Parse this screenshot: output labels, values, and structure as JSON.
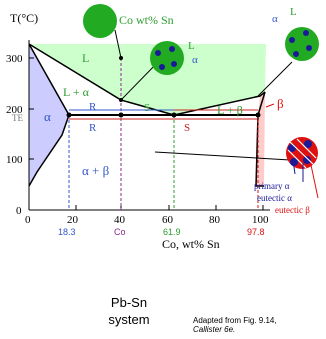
{
  "axes": {
    "y_label": "T(°C)",
    "x_label": "Co, wt% Sn",
    "y_ticks": [
      "0",
      "100",
      "200",
      "300"
    ],
    "x_ticks": [
      "0",
      "20",
      "40",
      "60",
      "80",
      "100"
    ],
    "te_label": "TE"
  },
  "composition_marks": {
    "c1": "18.3",
    "c2": "Co",
    "c3": "61.9",
    "c4": "97.8"
  },
  "regions": {
    "liquid": "L",
    "alpha": "α",
    "liquid_alpha": "L + α",
    "liquid_beta": "L + β",
    "beta": "β",
    "alpha_beta": "α + β"
  },
  "lever_labels": {
    "r_upper": "R",
    "s_upper": "S",
    "r_lower": "R",
    "s_lower": "S"
  },
  "top_label": "Co wt% Sn",
  "micro_mid": {
    "l": "L",
    "alpha": "α"
  },
  "micro_right": {
    "alpha": "α",
    "l": "L"
  },
  "micro_bottom": {
    "primary": "primary α",
    "eutectic_a": "eutectic α",
    "eutectic_b": "eutectic β"
  },
  "captions": {
    "system": "Pb-Sn system",
    "source_line1": "Adapted from Fig. 9.14,",
    "source_line2": "Callister 6e."
  },
  "colors": {
    "liquid": "#ccffcc",
    "alpha": "#ccccff",
    "beta": "#ffcccc",
    "green_text": "#2e9d2e",
    "blue_text": "#3355cc",
    "red": "#dd1111",
    "phase_green": "#1e8e1e",
    "navy": "#1a1a99"
  }
}
